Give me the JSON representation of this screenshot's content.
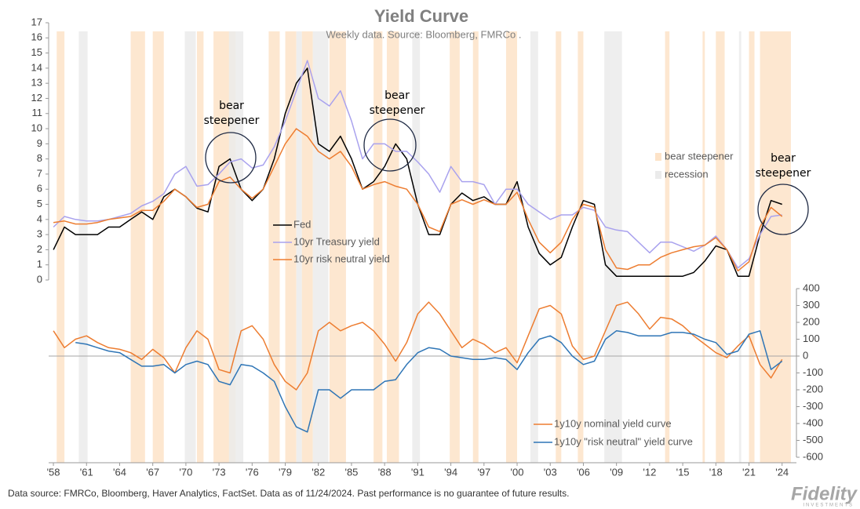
{
  "chart_data": [
    {
      "type": "line",
      "title": "Yield Curve",
      "subtitle": "Weekly data.  Source: Bloomberg, FMRCo .",
      "xlim": [
        1957.57,
        2025.3
      ],
      "ylim": [
        0,
        17
      ],
      "yticks": [
        0,
        1,
        2,
        3,
        4,
        5,
        6,
        7,
        8,
        9,
        10,
        11,
        12,
        13,
        14,
        15,
        16,
        17
      ],
      "x": [
        1958,
        1959,
        1960,
        1961,
        1962,
        1963,
        1964,
        1965,
        1966,
        1967,
        1968,
        1969,
        1970,
        1971,
        1972,
        1973,
        1974,
        1975,
        1976,
        1977,
        1978,
        1979,
        1980,
        1981,
        1982,
        1983,
        1984,
        1985,
        1986,
        1987,
        1988,
        1989,
        1990,
        1991,
        1992,
        1993,
        1994,
        1995,
        1996,
        1997,
        1998,
        1999,
        2000,
        2001,
        2002,
        2003,
        2004,
        2005,
        2006,
        2007,
        2008,
        2009,
        2010,
        2011,
        2012,
        2013,
        2014,
        2015,
        2016,
        2017,
        2018,
        2019,
        2020,
        2021,
        2022,
        2023,
        2024
      ],
      "series": [
        {
          "name": "Fed",
          "color": "#000000",
          "values": [
            2,
            3.5,
            3,
            3,
            3,
            3.5,
            3.5,
            4,
            4.5,
            4,
            5.5,
            6,
            5.5,
            4.75,
            4.5,
            7.5,
            8,
            6,
            5.25,
            6,
            8,
            11,
            13,
            14,
            9,
            8.5,
            9.5,
            8,
            6,
            6.5,
            7.5,
            9,
            8,
            5,
            3,
            3,
            5,
            5.75,
            5.25,
            5.5,
            5,
            5,
            6.5,
            3.5,
            1.75,
            1,
            1.5,
            3.5,
            5.25,
            5,
            1,
            0.25,
            0.25,
            0.25,
            0.25,
            0.25,
            0.25,
            0.25,
            0.5,
            1.25,
            2.25,
            2,
            0.25,
            0.25,
            3,
            5.25,
            5
          ]
        },
        {
          "name": "10yr Treasury yield",
          "color": "#a9a2ee",
          "values": [
            3.5,
            4.2,
            4,
            3.9,
            3.9,
            4,
            4.2,
            4.4,
            4.9,
            5.2,
            5.7,
            7,
            7.5,
            6.2,
            6.3,
            7,
            7.8,
            8,
            7.4,
            7.6,
            8.8,
            10.5,
            12.5,
            14.5,
            12,
            11.5,
            12.5,
            10.5,
            8,
            9,
            9,
            8.5,
            8.5,
            7.8,
            7,
            5.8,
            7.5,
            6.5,
            6.5,
            6.3,
            5,
            6,
            6,
            5,
            4.5,
            4,
            4.3,
            4.3,
            4.8,
            4.6,
            3.5,
            3.3,
            3.2,
            2.5,
            1.8,
            2.5,
            2.5,
            2.2,
            1.9,
            2.3,
            2.9,
            2,
            0.8,
            1.4,
            3,
            4.2,
            4.3
          ]
        },
        {
          "name": "10yr risk neutral yield",
          "color": "#ed7d31",
          "values": [
            3.8,
            3.9,
            3.7,
            3.7,
            3.8,
            4,
            4.1,
            4.2,
            4.6,
            4.6,
            5.2,
            6,
            5.5,
            4.8,
            5,
            6.5,
            6.8,
            6,
            5.4,
            6,
            7.5,
            9,
            10,
            9.5,
            8.5,
            8,
            8.5,
            7.5,
            6,
            6.3,
            6.5,
            6.2,
            6,
            5,
            3.5,
            3.2,
            5,
            5.3,
            5,
            5.3,
            5,
            5,
            5.8,
            4,
            2.5,
            1.8,
            2.5,
            4,
            5,
            4.8,
            2,
            0.8,
            0.7,
            1,
            1,
            1.5,
            1.8,
            2,
            2.2,
            2.3,
            2.8,
            2,
            0.6,
            1.2,
            3.5,
            4.8,
            4.2
          ]
        }
      ],
      "bands": [
        {
          "name": "bear steepener",
          "color": "#fde3c8",
          "spans": [
            [
              1958.3,
              1959.0
            ],
            [
              1965.0,
              1966.3
            ],
            [
              1967.0,
              1968.0
            ],
            [
              1971.0,
              1971.6
            ],
            [
              1972.5,
              1974.5
            ],
            [
              1977.5,
              1978.5
            ],
            [
              1979.0,
              1980.0
            ],
            [
              1980.5,
              1981.5
            ],
            [
              1983.0,
              1984.5
            ],
            [
              1987.0,
              1987.8
            ],
            [
              1988.2,
              1989.3
            ],
            [
              1993.9,
              1994.8
            ],
            [
              1996.0,
              1996.5
            ],
            [
              1999.0,
              2000.0
            ],
            [
              2003.5,
              2004.0
            ],
            [
              2005.5,
              2006.0
            ],
            [
              2013.4,
              2013.8
            ],
            [
              2016.8,
              2017.0
            ],
            [
              2018.0,
              2018.8
            ],
            [
              2021.0,
              2021.5
            ],
            [
              2022.0,
              2024.8
            ]
          ]
        },
        {
          "name": "recession",
          "color": "#ebebeb",
          "spans": [
            [
              1960.3,
              1961.1
            ],
            [
              1969.9,
              1970.9
            ],
            [
              1973.9,
              1975.2
            ],
            [
              1980.0,
              1980.5
            ],
            [
              1981.5,
              1982.9
            ],
            [
              1990.5,
              1991.2
            ],
            [
              2001.2,
              2001.9
            ],
            [
              2007.9,
              2009.5
            ],
            [
              2020.1,
              2020.3
            ]
          ]
        }
      ],
      "annotations": [
        "bear steepener",
        "bear steepener",
        "bear steepener"
      ]
    },
    {
      "type": "line",
      "xlim": [
        1957.57,
        2025.3
      ],
      "ylim": [
        -600,
        400
      ],
      "yticks": [
        -600,
        -500,
        -400,
        -300,
        -200,
        -100,
        0,
        100,
        200,
        300,
        400
      ],
      "xticks": [
        {
          "value": 1958,
          "label": "'58"
        },
        {
          "value": 1961,
          "label": "'61"
        },
        {
          "value": 1964,
          "label": "'64"
        },
        {
          "value": 1967,
          "label": "'67"
        },
        {
          "value": 1970,
          "label": "'70"
        },
        {
          "value": 1973,
          "label": "'73"
        },
        {
          "value": 1976,
          "label": "'76"
        },
        {
          "value": 1979,
          "label": "'79"
        },
        {
          "value": 1982,
          "label": "'82"
        },
        {
          "value": 1985,
          "label": "'85"
        },
        {
          "value": 1988,
          "label": "'88"
        },
        {
          "value": 1991,
          "label": "'91"
        },
        {
          "value": 1994,
          "label": "'94"
        },
        {
          "value": 1997,
          "label": "'97"
        },
        {
          "value": 2000,
          "label": "'00"
        },
        {
          "value": 2003,
          "label": "'03"
        },
        {
          "value": 2006,
          "label": "'06"
        },
        {
          "value": 2009,
          "label": "'09"
        },
        {
          "value": 2012,
          "label": "'12"
        },
        {
          "value": 2015,
          "label": "'15"
        },
        {
          "value": 2018,
          "label": "'18"
        },
        {
          "value": 2021,
          "label": "'21"
        },
        {
          "value": 2024,
          "label": "'24"
        }
      ],
      "x": [
        1958,
        1959,
        1960,
        1961,
        1962,
        1963,
        1964,
        1965,
        1966,
        1967,
        1968,
        1969,
        1970,
        1971,
        1972,
        1973,
        1974,
        1975,
        1976,
        1977,
        1978,
        1979,
        1980,
        1981,
        1982,
        1983,
        1984,
        1985,
        1986,
        1987,
        1988,
        1989,
        1990,
        1991,
        1992,
        1993,
        1994,
        1995,
        1996,
        1997,
        1998,
        1999,
        2000,
        2001,
        2002,
        2003,
        2004,
        2005,
        2006,
        2007,
        2008,
        2009,
        2010,
        2011,
        2012,
        2013,
        2014,
        2015,
        2016,
        2017,
        2018,
        2019,
        2020,
        2021,
        2022,
        2023,
        2024
      ],
      "series": [
        {
          "name": "1y10y nominal yield curve",
          "color": "#ed7d31",
          "values": [
            150,
            50,
            100,
            120,
            80,
            50,
            40,
            20,
            -20,
            40,
            -10,
            -100,
            50,
            150,
            100,
            -80,
            -100,
            150,
            180,
            100,
            -50,
            -150,
            -200,
            -100,
            150,
            200,
            150,
            180,
            200,
            150,
            70,
            -30,
            80,
            250,
            320,
            250,
            150,
            50,
            100,
            70,
            20,
            50,
            -40,
            120,
            280,
            300,
            250,
            60,
            -20,
            0,
            150,
            300,
            320,
            250,
            160,
            230,
            220,
            180,
            120,
            70,
            20,
            -10,
            60,
            120,
            -50,
            -130,
            -20
          ]
        },
        {
          "name": "1y10y \"risk neutral\" yield curve",
          "color": "#2e75b6",
          "values": [
            null,
            null,
            80,
            70,
            50,
            30,
            20,
            -20,
            -60,
            -60,
            -50,
            -100,
            -50,
            -30,
            -50,
            -150,
            -170,
            -50,
            -60,
            -100,
            -150,
            -300,
            -420,
            -450,
            -200,
            -200,
            -250,
            -200,
            -200,
            -200,
            -150,
            -140,
            -50,
            20,
            50,
            40,
            0,
            -10,
            -20,
            -20,
            -10,
            -20,
            -80,
            20,
            100,
            120,
            80,
            0,
            -50,
            -30,
            100,
            150,
            140,
            120,
            120,
            120,
            140,
            140,
            130,
            100,
            80,
            10,
            30,
            130,
            150,
            -80,
            -30
          ]
        }
      ]
    }
  ],
  "footer": {
    "source": "Data source: FMRCo, Bloomberg, Haver Analytics, FactSet. Data as of 11/24/2024. Past performance is no guarantee of future results.",
    "logo": "Fidelity",
    "logo_sub": "INVESTMENTS"
  }
}
